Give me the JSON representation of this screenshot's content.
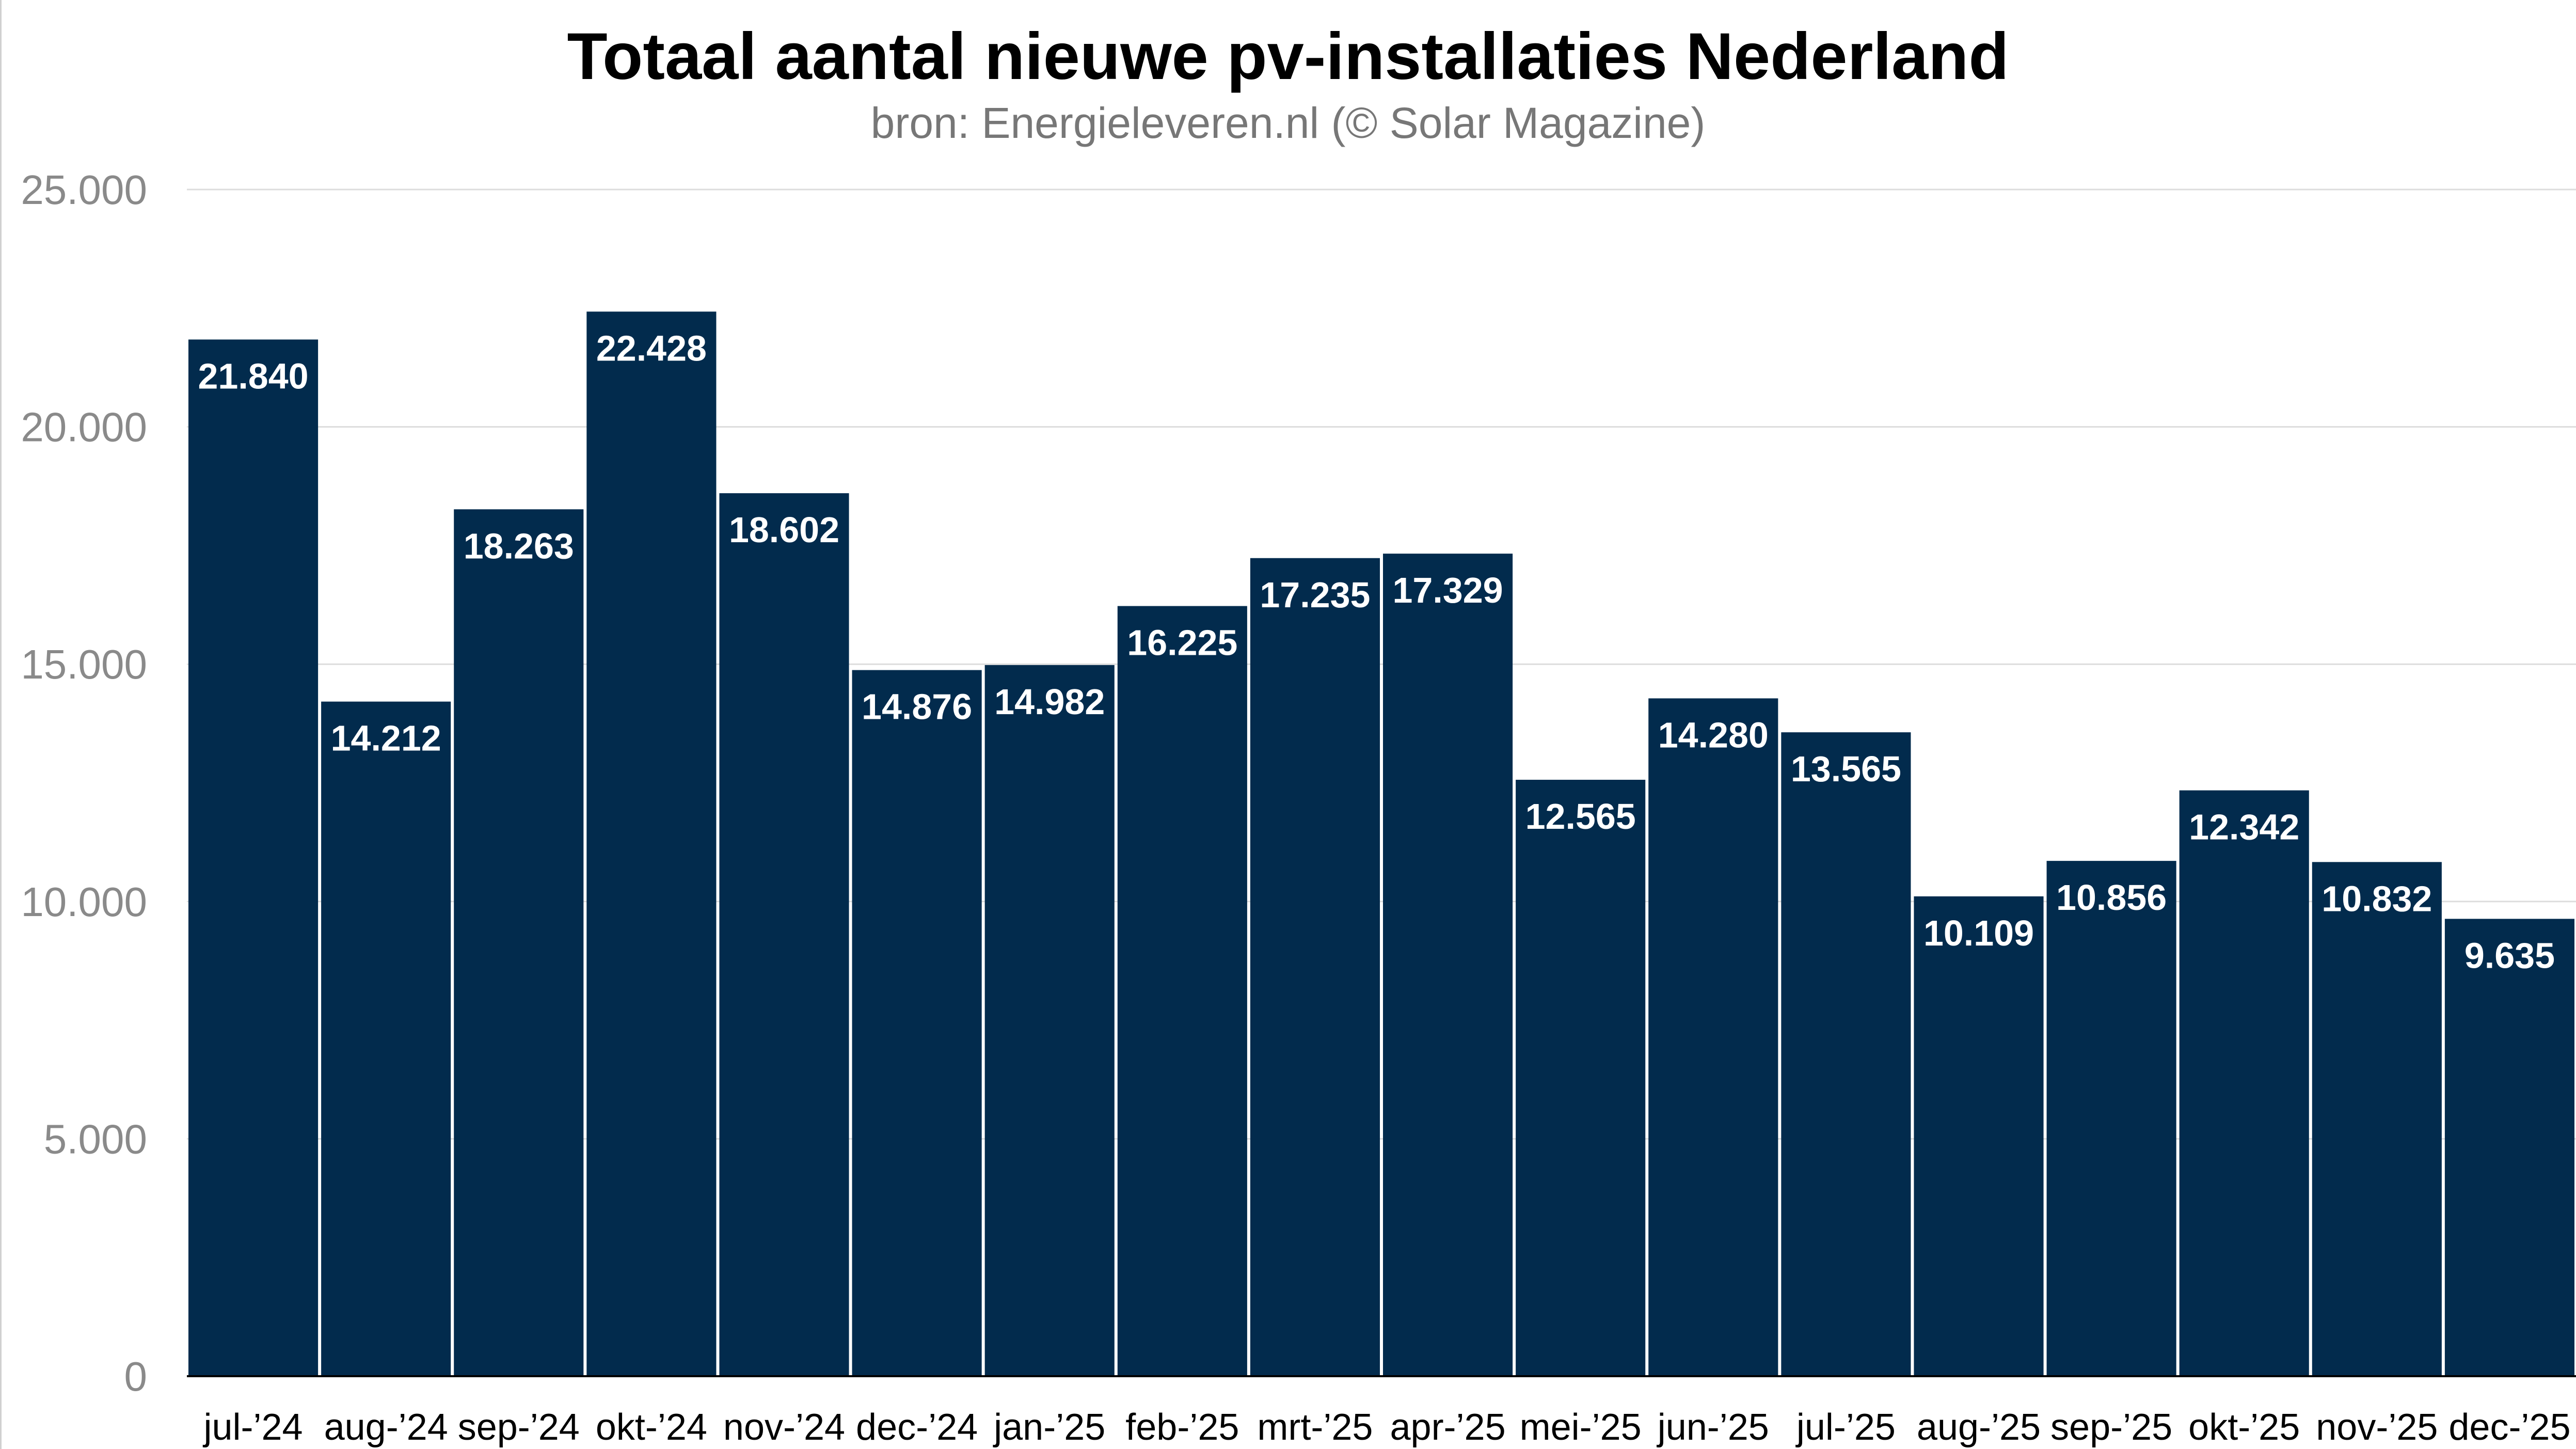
{
  "chart_data": {
    "type": "bar",
    "title": "Totaal aantal nieuwe pv-installaties Nederland",
    "subtitle": "bron: Energieleveren.nl (© Solar Magazine)",
    "xlabel": "",
    "ylabel": "",
    "ylim": [
      0,
      25000
    ],
    "y_ticks": [
      0,
      5000,
      10000,
      15000,
      20000,
      25000
    ],
    "y_tick_labels": [
      "0",
      "5.000",
      "10.000",
      "15.000",
      "20.000",
      "25.000"
    ],
    "grid": true,
    "categories": [
      "jul-’24",
      "aug-’24",
      "sep-’24",
      "okt-’24",
      "nov-’24",
      "dec-’24",
      "jan-’25",
      "feb-’25",
      "mrt-’25",
      "apr-’25",
      "mei-’25",
      "jun-’25",
      "jul-’25",
      "aug-’25",
      "sep-’25",
      "okt-’25",
      "nov-’25",
      "dec-’25"
    ],
    "values": [
      21840,
      14212,
      18263,
      22428,
      18602,
      14876,
      14982,
      16225,
      17235,
      17329,
      12565,
      14280,
      13565,
      10109,
      10856,
      12342,
      10832,
      9635
    ],
    "value_labels": [
      "21.840",
      "14.212",
      "18.263",
      "22.428",
      "18.602",
      "14.876",
      "14.982",
      "16.225",
      "17.235",
      "17.329",
      "12.565",
      "14.280",
      "13.565",
      "10.109",
      "10.856",
      "12.342",
      "10.832",
      "9.635"
    ],
    "colors": {
      "bar": "#022b4d",
      "bar_label": "#ffffff",
      "grid": "#dddddd",
      "tick": "#8a8a8a",
      "axis": "#000000"
    }
  }
}
